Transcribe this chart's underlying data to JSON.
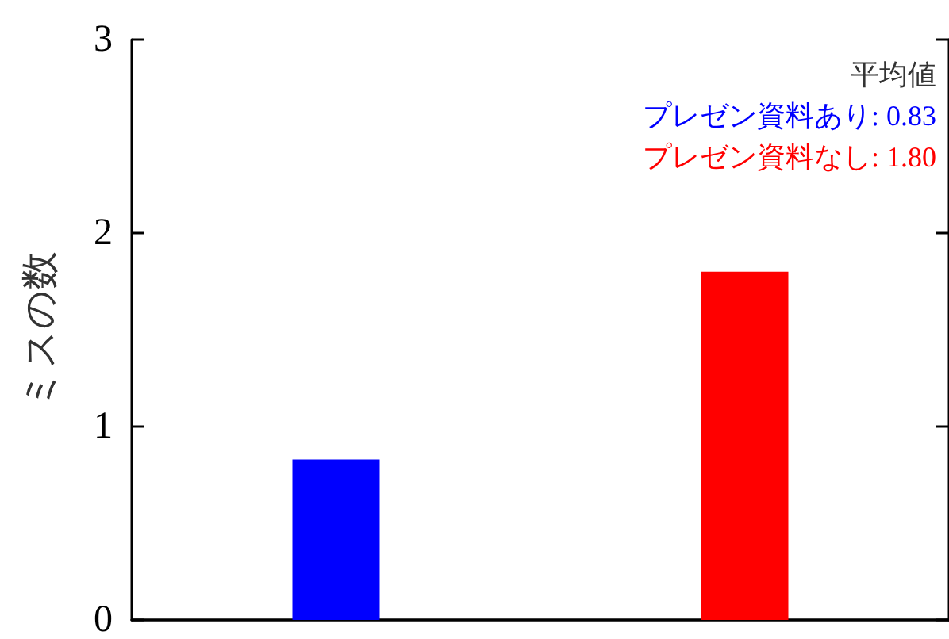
{
  "chart_data": {
    "type": "bar",
    "ylabel": "ミスの数",
    "annotations": [
      "平均値"
    ],
    "categories": [
      null,
      null
    ],
    "series": [
      {
        "name": "プレゼン資料あり:",
        "color": "#0000ff",
        "values": [
          0.83,
          null
        ],
        "value_labels": [
          "0.83",
          null
        ]
      },
      {
        "name": "プレゼン資料なし:",
        "color": "#ff0000",
        "values": [
          null,
          1.8
        ],
        "value_labels": [
          null,
          "1.80"
        ]
      }
    ],
    "ylim": [
      0,
      3
    ],
    "yticks": [
      0,
      1,
      2,
      3
    ],
    "grid": false
  }
}
